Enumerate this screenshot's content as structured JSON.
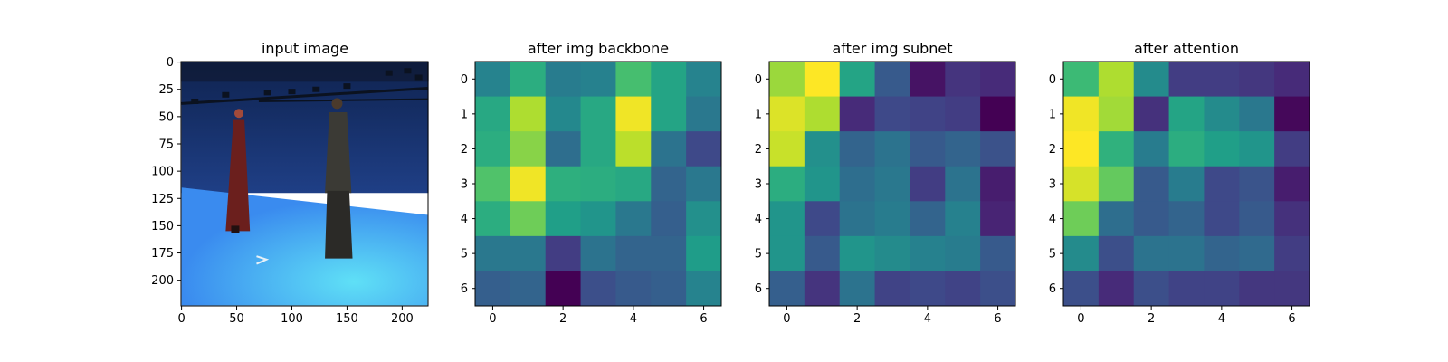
{
  "chart_data": [
    {
      "type": "image",
      "title": "input image",
      "xticks": [
        "0",
        "50",
        "100",
        "150",
        "200"
      ],
      "yticks": [
        "0",
        "25",
        "50",
        "75",
        "100",
        "125",
        "150",
        "175",
        "200"
      ],
      "xlim": [
        -0.5,
        223.5
      ],
      "ylim": [
        223.5,
        -0.5
      ],
      "scene": {
        "backdrop_color": "#1f3f86",
        "floor_color": "#3a8bef",
        "floor_highlight_color": "#5fe0f6",
        "rig_color": "#0b1220",
        "person1_coat_color": "#6b1f1d",
        "person2_coat_color": "#3b3a35",
        "marker_color": "#e8f1f7"
      }
    },
    {
      "type": "heatmap",
      "title": "after img backbone",
      "xticks": [
        "0",
        "2",
        "4",
        "6"
      ],
      "yticks": [
        "0",
        "1",
        "2",
        "3",
        "4",
        "5",
        "6"
      ],
      "colormap": "viridis",
      "values": [
        [
          0.45,
          0.62,
          0.42,
          0.44,
          0.7,
          0.58,
          0.45
        ],
        [
          0.6,
          0.88,
          0.47,
          0.6,
          0.98,
          0.58,
          0.4
        ],
        [
          0.62,
          0.82,
          0.36,
          0.6,
          0.9,
          0.38,
          0.22
        ],
        [
          0.72,
          0.98,
          0.63,
          0.62,
          0.6,
          0.32,
          0.4
        ],
        [
          0.62,
          0.78,
          0.56,
          0.52,
          0.4,
          0.3,
          0.5
        ],
        [
          0.4,
          0.4,
          0.18,
          0.38,
          0.32,
          0.32,
          0.55
        ],
        [
          0.3,
          0.32,
          0.0,
          0.24,
          0.28,
          0.3,
          0.45
        ]
      ]
    },
    {
      "type": "heatmap",
      "title": "after img subnet",
      "xticks": [
        "0",
        "2",
        "4",
        "6"
      ],
      "yticks": [
        "0",
        "1",
        "2",
        "3",
        "4",
        "5",
        "6"
      ],
      "colormap": "viridis",
      "values": [
        [
          0.85,
          1.0,
          0.58,
          0.28,
          0.05,
          0.15,
          0.12
        ],
        [
          0.95,
          0.88,
          0.12,
          0.22,
          0.2,
          0.18,
          0.0
        ],
        [
          0.92,
          0.5,
          0.32,
          0.38,
          0.28,
          0.32,
          0.25
        ],
        [
          0.62,
          0.52,
          0.36,
          0.4,
          0.18,
          0.38,
          0.08
        ],
        [
          0.52,
          0.22,
          0.38,
          0.42,
          0.32,
          0.44,
          0.1
        ],
        [
          0.52,
          0.28,
          0.52,
          0.48,
          0.44,
          0.42,
          0.28
        ],
        [
          0.3,
          0.15,
          0.38,
          0.2,
          0.22,
          0.2,
          0.24
        ]
      ]
    },
    {
      "type": "heatmap",
      "title": "after attention",
      "xticks": [
        "0",
        "2",
        "4",
        "6"
      ],
      "yticks": [
        "0",
        "1",
        "2",
        "3",
        "4",
        "5",
        "6"
      ],
      "colormap": "viridis",
      "values": [
        [
          0.68,
          0.88,
          0.48,
          0.18,
          0.18,
          0.16,
          0.12
        ],
        [
          0.98,
          0.86,
          0.14,
          0.58,
          0.48,
          0.4,
          0.02
        ],
        [
          1.0,
          0.64,
          0.42,
          0.62,
          0.56,
          0.52,
          0.18
        ],
        [
          0.94,
          0.76,
          0.28,
          0.42,
          0.22,
          0.26,
          0.08
        ],
        [
          0.78,
          0.36,
          0.28,
          0.32,
          0.22,
          0.28,
          0.14
        ],
        [
          0.48,
          0.24,
          0.38,
          0.38,
          0.32,
          0.34,
          0.18
        ],
        [
          0.24,
          0.12,
          0.24,
          0.2,
          0.2,
          0.16,
          0.16
        ]
      ]
    }
  ]
}
